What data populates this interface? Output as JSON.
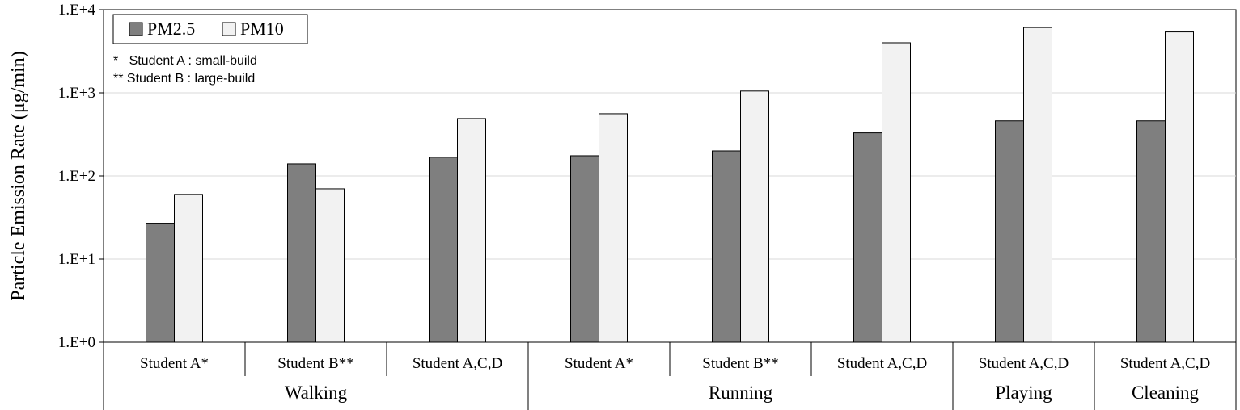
{
  "chart_data": {
    "type": "bar",
    "y_scale": "log",
    "ylim": [
      1,
      10000
    ],
    "yticks": [
      "1.E+0",
      "1.E+1",
      "1.E+2",
      "1.E+3",
      "1.E+4"
    ],
    "ylabel": "Particle Emission Rate (μg/min)",
    "xlabel": "",
    "grid": "horizontal",
    "legend_position": "top-left",
    "categories": [
      "Student A*",
      "Student B**",
      "Student A,C,D",
      "Student A*",
      "Student B**",
      "Student A,C,D",
      "Student A,C,D",
      "Student A,C,D"
    ],
    "groups": [
      {
        "label": "Walking",
        "categories": 3
      },
      {
        "label": "Running",
        "categories": 3
      },
      {
        "label": "Playing",
        "categories": 1
      },
      {
        "label": "Cleaning",
        "categories": 1
      }
    ],
    "series": [
      {
        "name": "PM2.5",
        "color": "#7f7f7f",
        "values": [
          27,
          140,
          168,
          175,
          200,
          330,
          460,
          460
        ]
      },
      {
        "name": "PM10",
        "color": "#f2f2f2",
        "values": [
          60,
          70,
          490,
          560,
          1050,
          4000,
          6100,
          5400
        ]
      }
    ],
    "notes": [
      "*   Student A : small-build",
      "** Student B : large-build"
    ]
  }
}
